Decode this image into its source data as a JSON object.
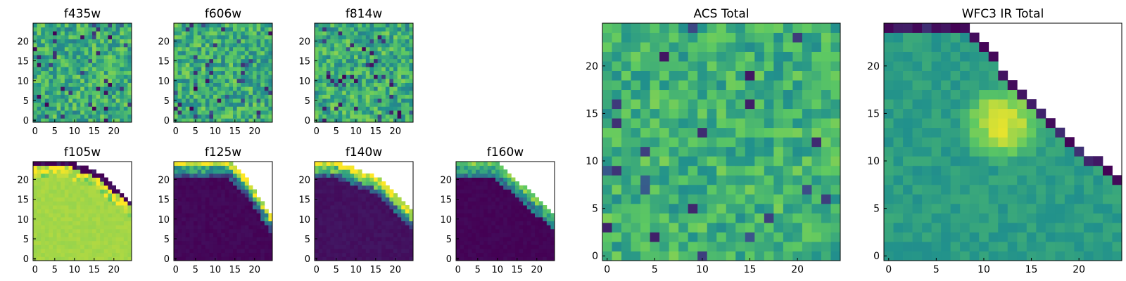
{
  "figure": {
    "colormap": "viridis",
    "colormap_stops": [
      "#440154",
      "#3b528b",
      "#21918c",
      "#5ec962",
      "#fde725"
    ],
    "missing_color": "#ffffff",
    "pixel_grid_size": 25
  },
  "chart_data": [
    {
      "type": "heatmap",
      "title": "f435w",
      "x": {
        "range": [
          0,
          24
        ],
        "ticks": [
          "0",
          "5",
          "10",
          "15",
          "20"
        ]
      },
      "y": {
        "range": [
          0,
          24
        ],
        "ticks": [
          "0",
          "5",
          "10",
          "15",
          "20"
        ]
      },
      "pattern": "noise",
      "mean": 0.62,
      "spread": 0.2,
      "low_outlier_fraction": 0.06,
      "seed": 11
    },
    {
      "type": "heatmap",
      "title": "f606w",
      "x": {
        "range": [
          0,
          24
        ],
        "ticks": [
          "0",
          "5",
          "10",
          "15",
          "20"
        ]
      },
      "y": {
        "range": [
          0,
          24
        ],
        "ticks": [
          "0",
          "5",
          "10",
          "15",
          "20"
        ]
      },
      "pattern": "noise",
      "mean": 0.62,
      "spread": 0.2,
      "low_outlier_fraction": 0.06,
      "seed": 23
    },
    {
      "type": "heatmap",
      "title": "f814w",
      "x": {
        "range": [
          0,
          24
        ],
        "ticks": [
          "0",
          "5",
          "10",
          "15",
          "20"
        ]
      },
      "y": {
        "range": [
          0,
          24
        ],
        "ticks": [
          "0",
          "5",
          "10",
          "15",
          "20"
        ]
      },
      "pattern": "noise",
      "mean": 0.62,
      "spread": 0.2,
      "low_outlier_fraction": 0.07,
      "seed": 37
    },
    {
      "type": "heatmap",
      "title": "f105w",
      "x": {
        "range": [
          0,
          24
        ],
        "ticks": [
          "0",
          "5",
          "10",
          "15",
          "20"
        ]
      },
      "y": {
        "range": [
          0,
          24
        ],
        "ticks": [
          "0",
          "5",
          "10",
          "15",
          "20"
        ]
      },
      "pattern": "edge",
      "edge_line": [
        [
          10,
          25
        ],
        [
          17,
          22
        ],
        [
          25,
          15
        ]
      ],
      "fill_value": 0.86,
      "edge_values": [
        0.0,
        0.95,
        0.86
      ],
      "seed": 41
    },
    {
      "type": "heatmap",
      "title": "f125w",
      "x": {
        "range": [
          0,
          24
        ],
        "ticks": [
          "0",
          "5",
          "10",
          "15",
          "20"
        ]
      },
      "y": {
        "range": [
          0,
          24
        ],
        "ticks": [
          "0",
          "5",
          "10",
          "15",
          "20"
        ]
      },
      "pattern": "edge",
      "edge_line": [
        [
          14,
          25
        ],
        [
          19,
          20
        ],
        [
          25,
          11
        ]
      ],
      "fill_value": 0.02,
      "edge_values": [
        0.95,
        0.55,
        0.3
      ],
      "seed": 53
    },
    {
      "type": "heatmap",
      "title": "f140w",
      "x": {
        "range": [
          0,
          24
        ],
        "ticks": [
          "0",
          "5",
          "10",
          "15",
          "20"
        ]
      },
      "y": {
        "range": [
          0,
          24
        ],
        "ticks": [
          "0",
          "5",
          "10",
          "15",
          "20"
        ]
      },
      "pattern": "edge",
      "edge_line": [
        [
          6,
          25
        ],
        [
          16,
          21
        ],
        [
          25,
          12
        ]
      ],
      "fill_value": 0.05,
      "edge_values": [
        0.95,
        0.7,
        0.3
      ],
      "seed": 67
    },
    {
      "type": "heatmap",
      "title": "f160w",
      "x": {
        "range": [
          0,
          24
        ],
        "ticks": [
          "0",
          "5",
          "10",
          "15",
          "20"
        ]
      },
      "y": {
        "range": [
          0,
          24
        ],
        "ticks": [
          "0",
          "5",
          "10",
          "15",
          "20"
        ]
      },
      "pattern": "edge",
      "edge_line": [
        [
          10,
          25
        ],
        [
          17,
          19
        ],
        [
          25,
          12
        ]
      ],
      "fill_value": 0.01,
      "edge_values": [
        0.75,
        0.55,
        0.4
      ],
      "seed": 71
    },
    {
      "type": "heatmap",
      "title": "ACS Total",
      "x": {
        "range": [
          0,
          24
        ],
        "ticks": [
          "0",
          "5",
          "10",
          "15",
          "20"
        ]
      },
      "y": {
        "range": [
          0,
          24
        ],
        "ticks": [
          "0",
          "5",
          "10",
          "15",
          "20"
        ]
      },
      "pattern": "noise",
      "mean": 0.64,
      "spread": 0.16,
      "low_outlier_fraction": 0.05,
      "seed": 89
    },
    {
      "type": "heatmap",
      "title": "WFC3 IR Total",
      "x": {
        "range": [
          0,
          24
        ],
        "ticks": [
          "0",
          "5",
          "10",
          "15",
          "20"
        ]
      },
      "y": {
        "range": [
          0,
          24
        ],
        "ticks": [
          "0",
          "5",
          "10",
          "15",
          "20"
        ]
      },
      "pattern": "wedge",
      "edge_line": [
        [
          9,
          25
        ],
        [
          14,
          18
        ],
        [
          19,
          13
        ],
        [
          25,
          9
        ]
      ],
      "peak": [
        12,
        14
      ],
      "peak_value": 0.95,
      "base_value": 0.55,
      "edge_values": [
        0.0,
        0.3
      ],
      "seed": 97
    }
  ]
}
